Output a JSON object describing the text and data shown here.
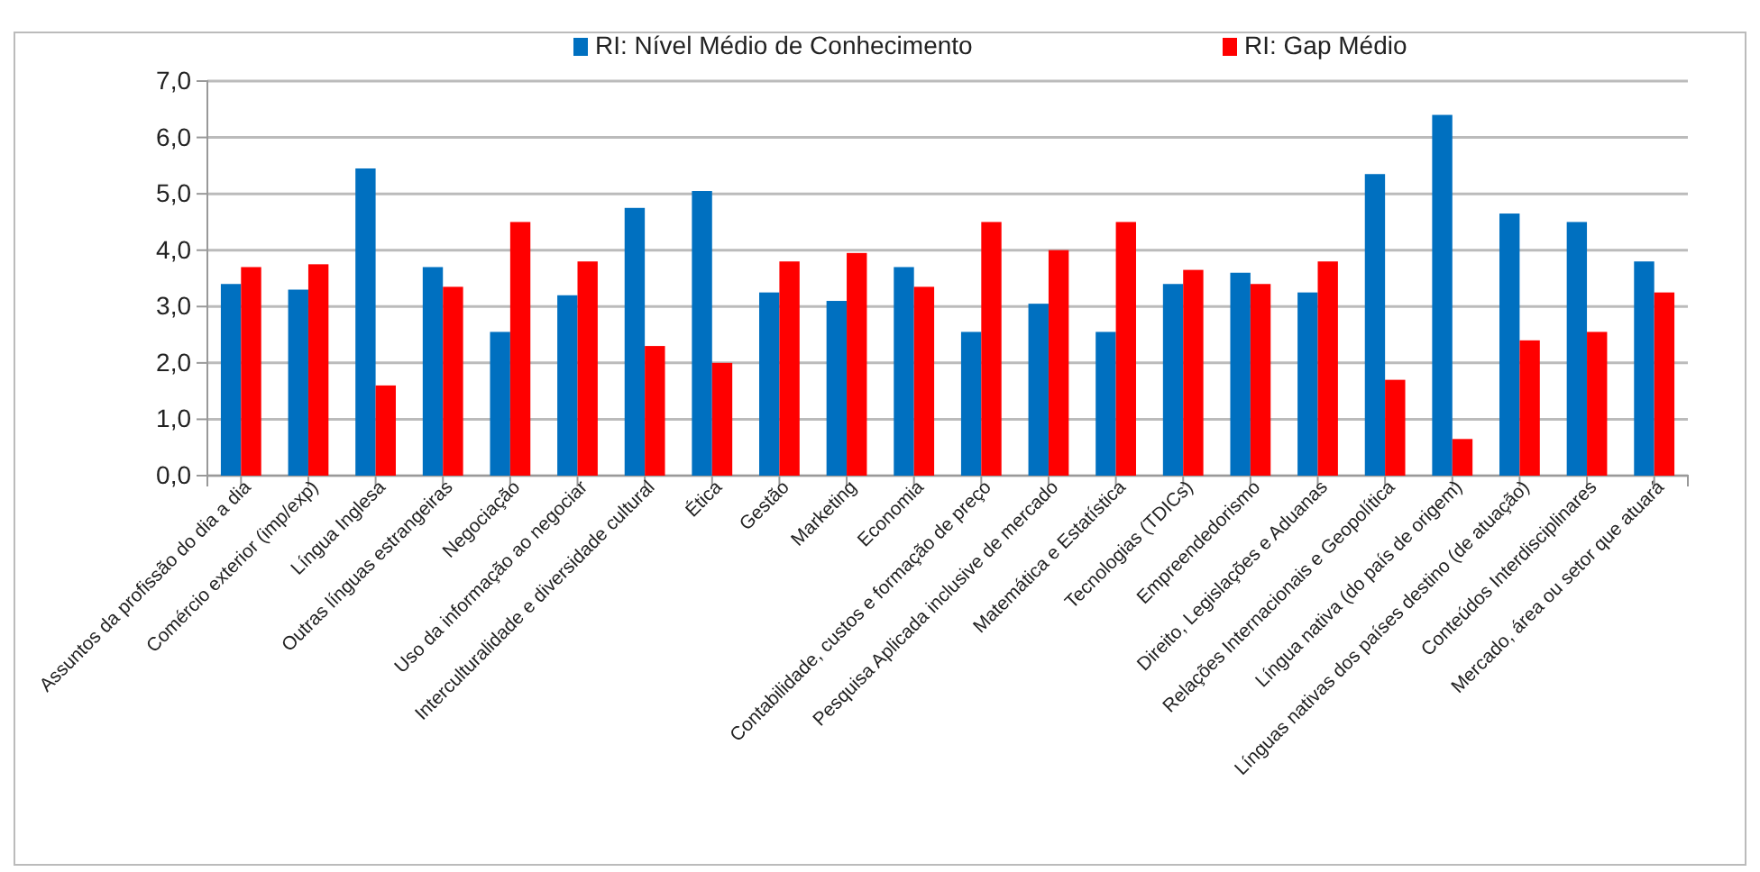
{
  "chart_data": {
    "type": "bar",
    "categories": [
      "Assuntos da profissão do dia a dia",
      "Comércio exterior (imp/exp)",
      "Língua Inglesa",
      "Outras línguas estrangeiras",
      "Negociação",
      "Uso da informação ao negociar",
      "Interculturalidade e diversidade cultural",
      "Ética",
      "Gestão",
      "Marketing",
      "Economia",
      "Contabilidade, custos e formação de preço",
      "Pesquisa Aplicada inclusive de mercado",
      "Matemática e Estatística",
      "Tecnologias (TDICs)",
      "Empreendedorismo",
      "Direito, Legislações e Aduanas",
      "Relações Internacionais e Geopolítica",
      "Língua nativa (do país de origem)",
      "Línguas nativas dos países destino (de atuação)",
      "Conteúdos Interdisciplinares",
      "Mercado, área ou setor que atuará"
    ],
    "series": [
      {
        "name": "RI: Nível Médio de Conhecimento",
        "color": "#0070c0",
        "values": [
          3.4,
          3.3,
          5.45,
          3.7,
          2.55,
          3.2,
          4.75,
          5.05,
          3.25,
          3.1,
          3.7,
          2.55,
          3.05,
          2.55,
          3.4,
          3.6,
          3.25,
          5.35,
          6.4,
          4.65,
          4.5,
          3.8
        ]
      },
      {
        "name": "RI: Gap Médio",
        "color": "#ff0000",
        "values": [
          3.7,
          3.75,
          1.6,
          3.35,
          4.5,
          3.8,
          2.3,
          2.0,
          3.8,
          3.95,
          3.35,
          4.5,
          4.0,
          4.5,
          3.65,
          3.4,
          3.8,
          1.7,
          0.65,
          2.4,
          2.55,
          3.25
        ]
      }
    ],
    "ylim": [
      0,
      7
    ],
    "yticks": [
      {
        "value": 0,
        "label": "0,0"
      },
      {
        "value": 1,
        "label": "1,0"
      },
      {
        "value": 2,
        "label": "2,0"
      },
      {
        "value": 3,
        "label": "3,0"
      },
      {
        "value": 4,
        "label": "4,0"
      },
      {
        "value": 5,
        "label": "5,0"
      },
      {
        "value": 6,
        "label": "6,0"
      },
      {
        "value": 7,
        "label": "7,0"
      }
    ],
    "grid": "y",
    "legend": "top"
  }
}
